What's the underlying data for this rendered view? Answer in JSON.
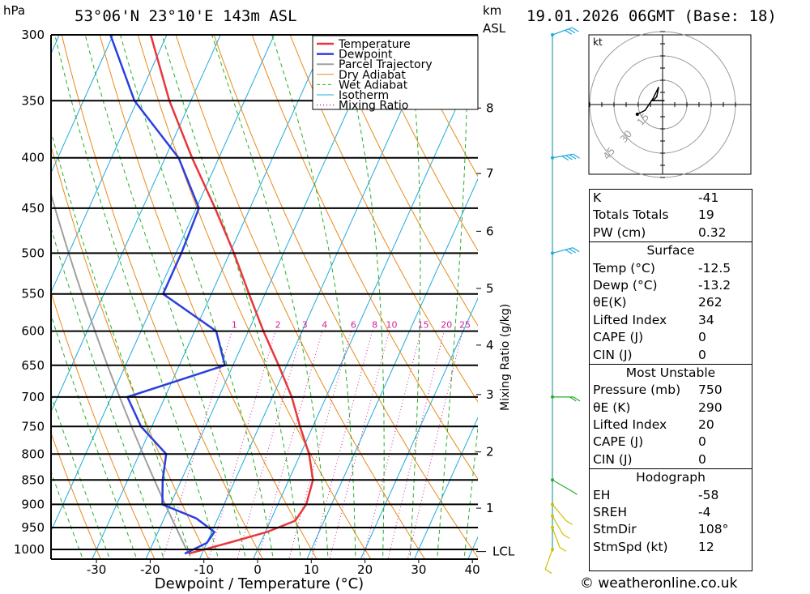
{
  "header": {
    "location": "53°06'N  23°10'E  143m  ASL",
    "datetime": "19.01.2026  06GMT  (Base: 18)",
    "left_unit": "hPa",
    "right_unit_top": "km",
    "right_unit_bottom": "ASL"
  },
  "chart_data": {
    "type": "line",
    "subtype": "skew-T log-p sounding",
    "xlabel": "Dewpoint / Temperature (°C)",
    "ylabel": "hPa",
    "x_ticks": [
      -30,
      -20,
      -10,
      0,
      10,
      20,
      30,
      40
    ],
    "xlim": [
      -40,
      40
    ],
    "pressure_levels": [
      300,
      350,
      400,
      450,
      500,
      550,
      600,
      650,
      700,
      750,
      800,
      850,
      900,
      950,
      1000
    ],
    "ylim": [
      1020,
      300
    ],
    "y_scale": "log",
    "km_ticks": [
      {
        "km": "1",
        "p": 908
      },
      {
        "km": "2",
        "p": 796
      },
      {
        "km": "3",
        "p": 696
      },
      {
        "km": "4",
        "p": 620
      },
      {
        "km": "5",
        "p": 543
      },
      {
        "km": "6",
        "p": 475
      },
      {
        "km": "7",
        "p": 415
      },
      {
        "km": "8",
        "p": 356
      }
    ],
    "lcl_label": "LCL",
    "lcl_pressure": 1005,
    "mixing_ratio_label": "Mixing Ratio (g/kg)",
    "mixing_ratio_values": [
      "1",
      "2",
      "3",
      "4",
      "6",
      "8",
      "10",
      "15",
      "20",
      "25"
    ],
    "legend": [
      "Temperature",
      "Dewpoint",
      "Parcel Trajectory",
      "Dry Adiabat",
      "Wet Adiabat",
      "Isotherm",
      "Mixing Ratio"
    ],
    "legend_position": "top-right",
    "colors": {
      "temperature": "#e8373b",
      "dewpoint": "#2b3fe0",
      "parcel": "#a0a0a0",
      "dry_adiabat": "#e88a1a",
      "wet_adiabat": "#22b022",
      "isotherm": "#1eaadc",
      "mixing_ratio": "#d0209a"
    },
    "series": [
      {
        "name": "Temperature",
        "points": [
          {
            "p": 1010,
            "t": -12.5
          },
          {
            "p": 985,
            "t": -6.0
          },
          {
            "p": 960,
            "t": 0.3
          },
          {
            "p": 935,
            "t": 4.6
          },
          {
            "p": 900,
            "t": 5.3
          },
          {
            "p": 850,
            "t": 4.5
          },
          {
            "p": 800,
            "t": 1.6
          },
          {
            "p": 750,
            "t": -2.4
          },
          {
            "p": 700,
            "t": -6.4
          },
          {
            "p": 650,
            "t": -11.5
          },
          {
            "p": 600,
            "t": -17.2
          },
          {
            "p": 550,
            "t": -23.0
          },
          {
            "p": 500,
            "t": -29.2
          },
          {
            "p": 450,
            "t": -36.5
          },
          {
            "p": 400,
            "t": -45.0
          },
          {
            "p": 350,
            "t": -54.0
          },
          {
            "p": 300,
            "t": -63.0
          }
        ]
      },
      {
        "name": "Dewpoint",
        "points": [
          {
            "p": 1010,
            "t": -13.2
          },
          {
            "p": 985,
            "t": -10.0
          },
          {
            "p": 960,
            "t": -9.5
          },
          {
            "p": 930,
            "t": -14.0
          },
          {
            "p": 900,
            "t": -21.5
          },
          {
            "p": 850,
            "t": -23.5
          },
          {
            "p": 800,
            "t": -25.0
          },
          {
            "p": 750,
            "t": -32.0
          },
          {
            "p": 700,
            "t": -37.0
          },
          {
            "p": 650,
            "t": -21.5
          },
          {
            "p": 600,
            "t": -26.0
          },
          {
            "p": 550,
            "t": -39.0
          },
          {
            "p": 500,
            "t": -39.0
          },
          {
            "p": 450,
            "t": -39.5
          },
          {
            "p": 400,
            "t": -47.5
          },
          {
            "p": 350,
            "t": -60.5
          },
          {
            "p": 300,
            "t": -70.5
          }
        ]
      }
    ],
    "wind_profile": [
      {
        "p": 300,
        "dir": 250,
        "spd": 30
      },
      {
        "p": 400,
        "dir": 260,
        "spd": 35
      },
      {
        "p": 500,
        "dir": 255,
        "spd": 25
      },
      {
        "p": 700,
        "dir": 270,
        "spd": 15
      },
      {
        "p": 850,
        "dir": 300,
        "spd": 10
      },
      {
        "p": 900,
        "dir": 320,
        "spd": 10
      },
      {
        "p": 925,
        "dir": 330,
        "spd": 10
      },
      {
        "p": 950,
        "dir": 340,
        "spd": 8
      },
      {
        "p": 1000,
        "dir": 20,
        "spd": 5
      }
    ],
    "hodograph": {
      "units": "kt",
      "ring_labels": [
        "15",
        "30",
        "45"
      ],
      "points": [
        {
          "u": -13,
          "v": -5
        },
        {
          "u": -9,
          "v": -3
        },
        {
          "u": -5,
          "v": 3
        },
        {
          "u": -2,
          "v": 9
        },
        {
          "u": -3,
          "v": 4
        },
        {
          "u": -5,
          "v": 2
        },
        {
          "u": 1,
          "v": 2
        }
      ]
    }
  },
  "indices": {
    "rows_top": [
      {
        "label": "K",
        "value": "-41"
      },
      {
        "label": "Totals Totals",
        "value": "19"
      },
      {
        "label": "PW (cm)",
        "value": "0.32"
      }
    ],
    "surface_title": "Surface",
    "surface": [
      {
        "label": "Temp (°C)",
        "value": "-12.5"
      },
      {
        "label": "Dewp (°C)",
        "value": "-13.2"
      },
      {
        "label": "θE(K)",
        "value": "262"
      },
      {
        "label": "Lifted Index",
        "value": "34"
      },
      {
        "label": "CAPE (J)",
        "value": "0"
      },
      {
        "label": "CIN (J)",
        "value": "0"
      }
    ],
    "unstable_title": "Most Unstable",
    "unstable": [
      {
        "label": "Pressure (mb)",
        "value": "750"
      },
      {
        "label": "θE (K)",
        "value": "290"
      },
      {
        "label": "Lifted Index",
        "value": "20"
      },
      {
        "label": "CAPE (J)",
        "value": "0"
      },
      {
        "label": "CIN (J)",
        "value": "0"
      }
    ],
    "hodo_title": "Hodograph",
    "hodo": [
      {
        "label": "EH",
        "value": "-58"
      },
      {
        "label": "SREH",
        "value": "-4"
      },
      {
        "label": "StmDir",
        "value": "108°"
      },
      {
        "label": "StmSpd (kt)",
        "value": "12"
      }
    ]
  },
  "credit": "© weatheronline.co.uk"
}
